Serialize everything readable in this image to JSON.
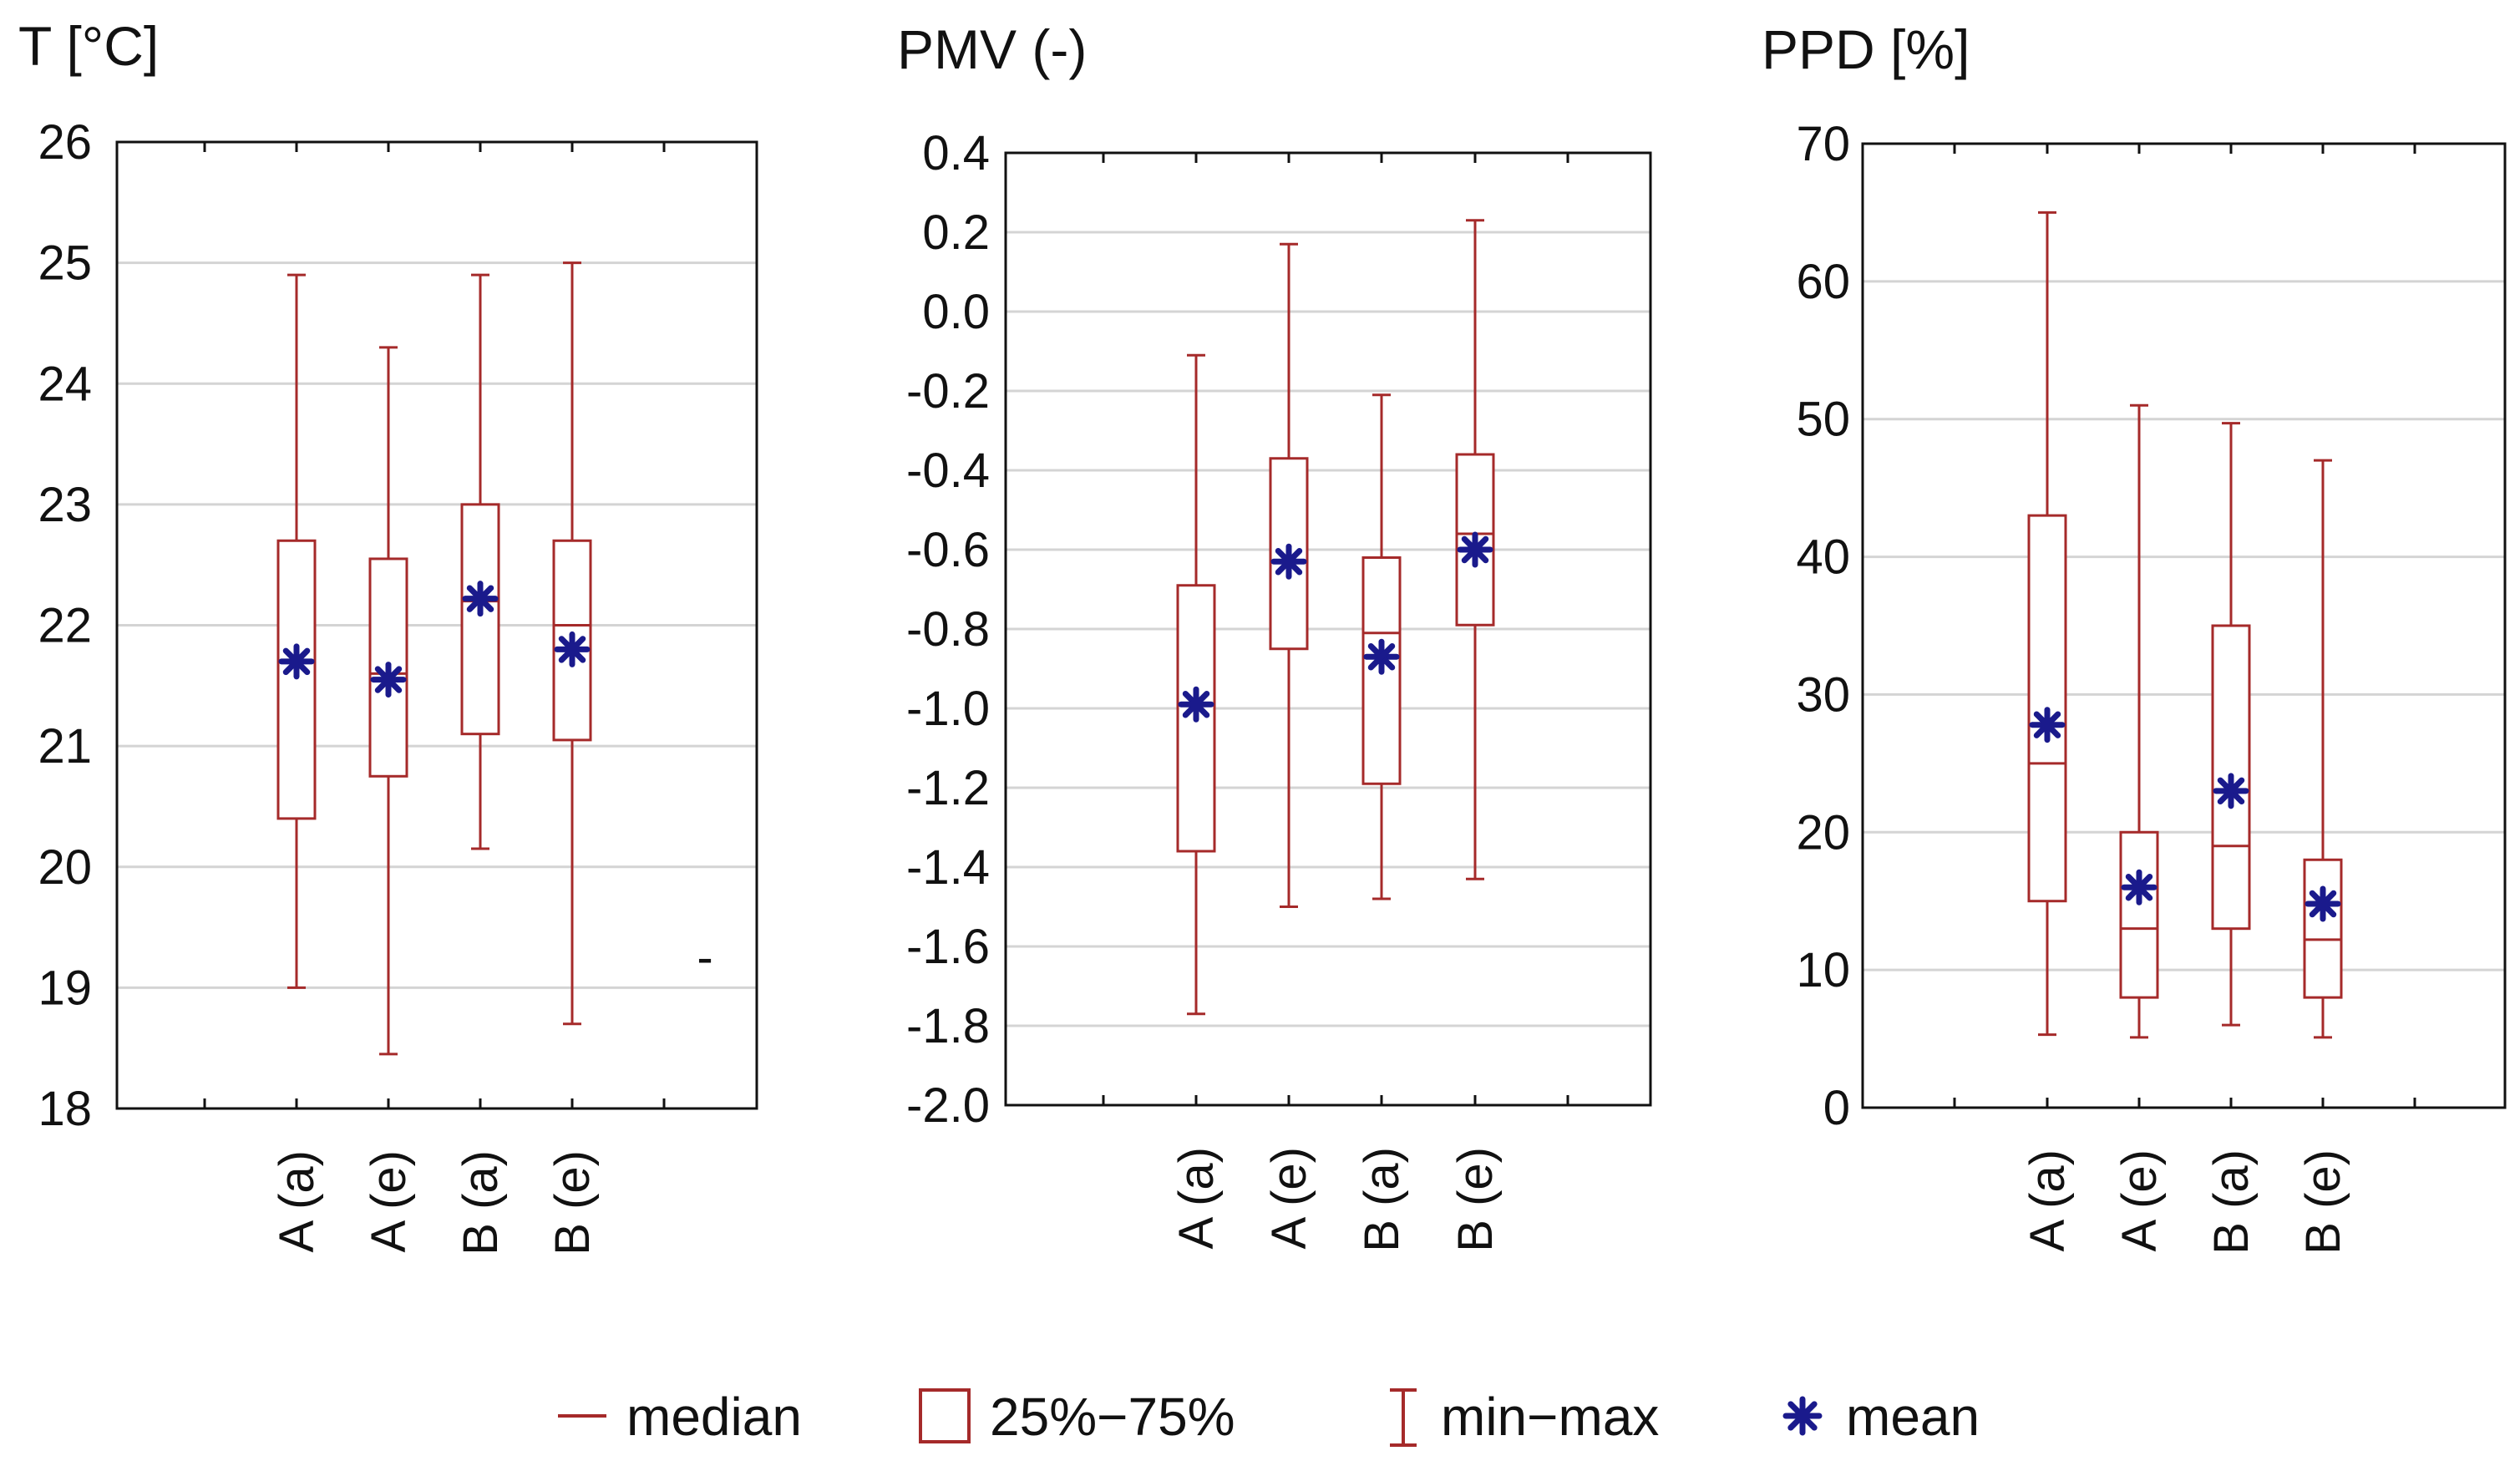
{
  "chart_data": [
    {
      "type": "boxplot",
      "title": "T [°C]",
      "categories": [
        "A (a)",
        "A (e)",
        "B (a)",
        "B (e)"
      ],
      "ylim": [
        18,
        26
      ],
      "yticks": [
        "18",
        "19",
        "20",
        "21",
        "22",
        "23",
        "24",
        "25",
        "26"
      ],
      "series": [
        {
          "name": "A (a)",
          "min": 19.0,
          "q1": 20.4,
          "median": 21.7,
          "q3": 22.7,
          "max": 24.9,
          "mean": 21.7
        },
        {
          "name": "A (e)",
          "min": 18.45,
          "q1": 20.75,
          "median": 21.6,
          "q3": 22.55,
          "max": 24.3,
          "mean": 21.55
        },
        {
          "name": "B (a)",
          "min": 20.15,
          "q1": 21.1,
          "median": 22.2,
          "q3": 23.0,
          "max": 24.9,
          "mean": 22.22
        },
        {
          "name": "B (e)",
          "min": 18.7,
          "q1": 21.05,
          "median": 22.0,
          "q3": 22.7,
          "max": 25.0,
          "mean": 21.8
        }
      ],
      "annotation": "-"
    },
    {
      "type": "boxplot",
      "title": "PMV (-)",
      "categories": [
        "A (a)",
        "A (e)",
        "B (a)",
        "B (e)"
      ],
      "ylim": [
        -2.0,
        0.4
      ],
      "yticks": [
        "-2.0",
        "-1.8",
        "-1.6",
        "-1.4",
        "-1.2",
        "-1.0",
        "-0.8",
        "-0.6",
        "-0.4",
        "-0.2",
        "0.0",
        "0.2",
        "0.4"
      ],
      "series": [
        {
          "name": "A (a)",
          "min": -1.77,
          "q1": -1.36,
          "median": -0.99,
          "q3": -0.69,
          "max": -0.11,
          "mean": -0.99
        },
        {
          "name": "A (e)",
          "min": -1.5,
          "q1": -0.85,
          "median": -0.63,
          "q3": -0.37,
          "max": 0.17,
          "mean": -0.63
        },
        {
          "name": "B (a)",
          "min": -1.48,
          "q1": -1.19,
          "median": -0.81,
          "q3": -0.62,
          "max": -0.21,
          "mean": -0.87
        },
        {
          "name": "B (e)",
          "min": -1.43,
          "q1": -0.79,
          "median": -0.56,
          "q3": -0.36,
          "max": 0.23,
          "mean": -0.6
        }
      ]
    },
    {
      "type": "boxplot",
      "title": "PPD [%]",
      "categories": [
        "A (a)",
        "A (e)",
        "B (a)",
        "B (e)"
      ],
      "ylim": [
        0,
        70
      ],
      "yticks": [
        "0",
        "10",
        "20",
        "30",
        "40",
        "50",
        "60",
        "70"
      ],
      "series": [
        {
          "name": "A (a)",
          "min": 5.3,
          "q1": 15,
          "median": 25,
          "q3": 43,
          "max": 65,
          "mean": 27.8
        },
        {
          "name": "A (e)",
          "min": 5.1,
          "q1": 8,
          "median": 13,
          "q3": 20,
          "max": 51,
          "mean": 16
        },
        {
          "name": "B (a)",
          "min": 6,
          "q1": 13,
          "median": 19,
          "q3": 35,
          "max": 49.7,
          "mean": 23
        },
        {
          "name": "B (e)",
          "min": 5.1,
          "q1": 8,
          "median": 12.2,
          "q3": 18,
          "max": 47,
          "mean": 14.8
        }
      ]
    }
  ],
  "legend": {
    "median": "median",
    "box": "25%−75%",
    "whisker": "min−max",
    "mean": "mean"
  },
  "colors": {
    "box": "#a52a2a",
    "mean": "#1a1a8c",
    "grid": "#d4d4d4",
    "axis": "#111111"
  }
}
